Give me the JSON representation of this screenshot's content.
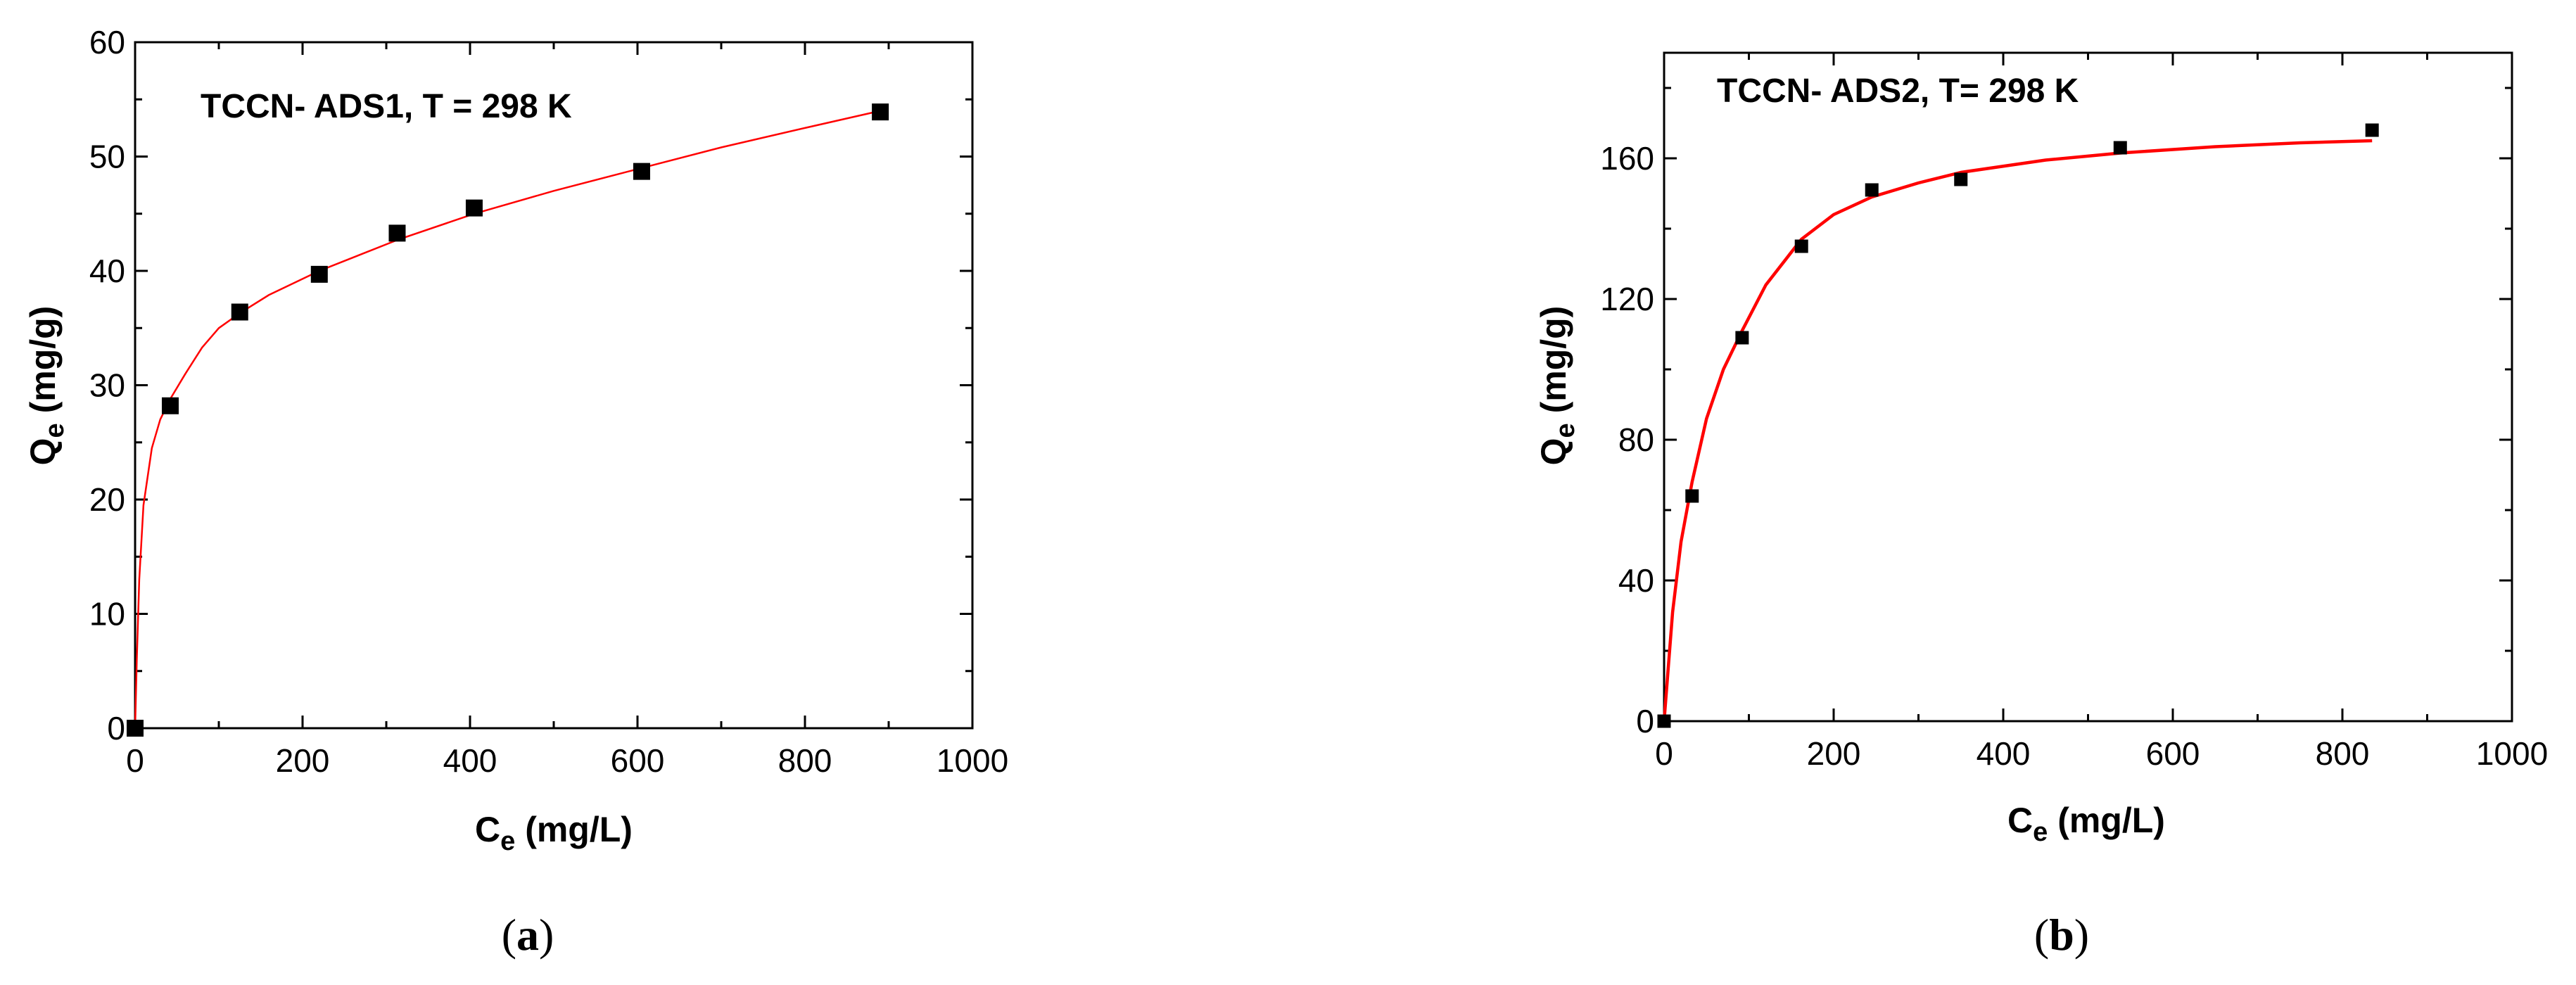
{
  "colors": {
    "fit_line": "#ff0000",
    "points": "#000000",
    "axes": "#000000"
  },
  "chart_data": [
    {
      "type": "scatter",
      "panel": "a",
      "caption_letter": "a",
      "annotation": "TCCN- ADS1, T = 298 K",
      "xlabel_main": "C",
      "xlabel_sub": "e",
      "xlabel_unit": " (mg/L)",
      "ylabel_main": "Q",
      "ylabel_sub": "e",
      "ylabel_unit": " (mg/g)",
      "xlim": [
        0,
        1000
      ],
      "ylim": [
        0,
        60
      ],
      "xticks": [
        0,
        200,
        400,
        600,
        800,
        1000
      ],
      "yticks": [
        0,
        10,
        20,
        30,
        40,
        50,
        60
      ],
      "grid": false,
      "points": [
        {
          "x": 0,
          "y": 0
        },
        {
          "x": 42,
          "y": 28.2
        },
        {
          "x": 125,
          "y": 36.4
        },
        {
          "x": 220,
          "y": 39.7
        },
        {
          "x": 313,
          "y": 43.3
        },
        {
          "x": 405,
          "y": 45.5
        },
        {
          "x": 605,
          "y": 48.7
        },
        {
          "x": 890,
          "y": 53.9
        }
      ],
      "fit_curve": [
        {
          "x": 0,
          "y": 0
        },
        {
          "x": 2,
          "y": 6
        },
        {
          "x": 5,
          "y": 13
        },
        {
          "x": 10,
          "y": 19.5
        },
        {
          "x": 20,
          "y": 24.5
        },
        {
          "x": 30,
          "y": 27
        },
        {
          "x": 42,
          "y": 28.8
        },
        {
          "x": 60,
          "y": 31
        },
        {
          "x": 80,
          "y": 33.3
        },
        {
          "x": 100,
          "y": 35
        },
        {
          "x": 125,
          "y": 36.3
        },
        {
          "x": 160,
          "y": 37.9
        },
        {
          "x": 220,
          "y": 40
        },
        {
          "x": 313,
          "y": 42.7
        },
        {
          "x": 405,
          "y": 45
        },
        {
          "x": 500,
          "y": 47
        },
        {
          "x": 605,
          "y": 49
        },
        {
          "x": 700,
          "y": 50.8
        },
        {
          "x": 800,
          "y": 52.5
        },
        {
          "x": 890,
          "y": 54
        }
      ]
    },
    {
      "type": "scatter",
      "panel": "b",
      "caption_letter": "b",
      "annotation": "TCCN- ADS2, T= 298 K",
      "xlabel_main": "C",
      "xlabel_sub": "e",
      "xlabel_unit": " (mg/L)",
      "ylabel_main": "Q",
      "ylabel_sub": "e",
      "ylabel_unit": " (mg/g)",
      "xlim": [
        0,
        1000
      ],
      "ylim": [
        0,
        190
      ],
      "xticks": [
        0,
        200,
        400,
        600,
        800,
        1000
      ],
      "yticks": [
        0,
        40,
        80,
        120,
        160
      ],
      "grid": false,
      "points": [
        {
          "x": 0,
          "y": 0
        },
        {
          "x": 33,
          "y": 64
        },
        {
          "x": 92,
          "y": 109
        },
        {
          "x": 162,
          "y": 135
        },
        {
          "x": 245,
          "y": 151
        },
        {
          "x": 350,
          "y": 154
        },
        {
          "x": 538,
          "y": 163
        },
        {
          "x": 835,
          "y": 168
        }
      ],
      "fit_curve": [
        {
          "x": 0,
          "y": 0
        },
        {
          "x": 10,
          "y": 31
        },
        {
          "x": 20,
          "y": 51
        },
        {
          "x": 33,
          "y": 68
        },
        {
          "x": 50,
          "y": 86
        },
        {
          "x": 70,
          "y": 100
        },
        {
          "x": 92,
          "y": 111
        },
        {
          "x": 120,
          "y": 124
        },
        {
          "x": 162,
          "y": 137
        },
        {
          "x": 200,
          "y": 144
        },
        {
          "x": 245,
          "y": 149
        },
        {
          "x": 300,
          "y": 153
        },
        {
          "x": 350,
          "y": 156
        },
        {
          "x": 450,
          "y": 159.5
        },
        {
          "x": 538,
          "y": 161.5
        },
        {
          "x": 650,
          "y": 163.3
        },
        {
          "x": 750,
          "y": 164.4
        },
        {
          "x": 835,
          "y": 165
        }
      ]
    }
  ]
}
